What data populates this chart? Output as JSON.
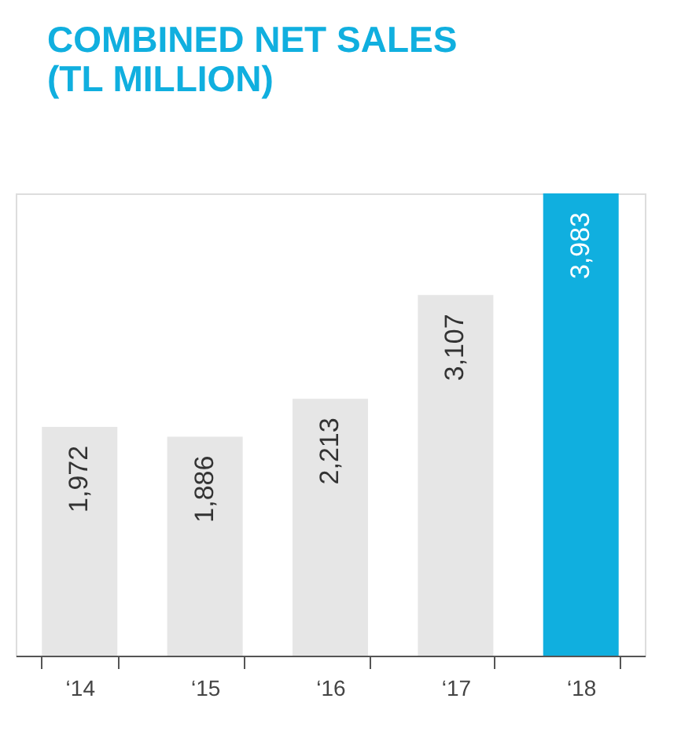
{
  "chart_data": {
    "type": "bar",
    "title": "COMBINED NET SALES\n(TL MILLION)",
    "categories": [
      "‘14",
      "‘15",
      "‘16",
      "‘17",
      "‘18"
    ],
    "values": [
      1972,
      1886,
      2213,
      3107,
      3983
    ],
    "colors": [
      "#e6e6e6",
      "#e6e6e6",
      "#e6e6e6",
      "#e6e6e6",
      "#10afdf"
    ],
    "value_labels": [
      "1,972",
      "1,886",
      "2,213",
      "3,107",
      "3,983"
    ],
    "grid": false
  }
}
